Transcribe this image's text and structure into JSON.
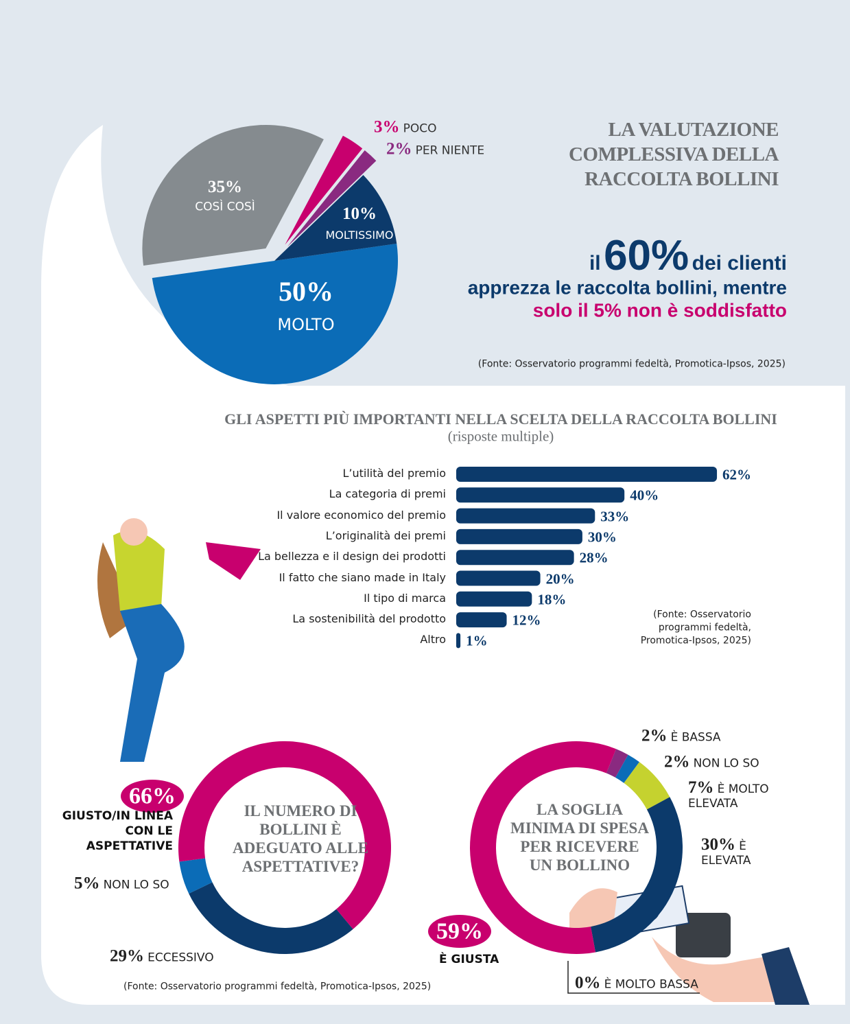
{
  "headline": {
    "line1": [
      "il",
      "60%",
      "dei clienti"
    ],
    "line2": "apprezza le raccolta bollini, mentre",
    "line3": "solo il 5% non è soddisfatto"
  },
  "chart_data": [
    {
      "type": "pie",
      "title": "LA VALUTAZIONE COMPLESSIVA DELLA RACCOLTA BOLLINI",
      "categories": [
        "MOLTO",
        "COSÌ COSÌ",
        "POCO",
        "PER NIENTE",
        "MOLTISSIMO"
      ],
      "values": [
        50,
        35,
        3,
        2,
        10
      ],
      "value_labels": [
        "50%",
        "35%",
        "3%",
        "2%",
        "10%"
      ],
      "colors": [
        "#0b6cb7",
        "#858b8f",
        "#c8006e",
        "#8a2a80",
        "#0c3a6b"
      ],
      "source": "(Fonte: Osservatorio programmi fedeltà, Promotica-Ipsos, 2025)"
    },
    {
      "type": "bar",
      "title": "GLI ASPETTI PIÙ IMPORTANTI NELLA SCELTA DELLA RACCOLTA BOLLINI",
      "subtitle": "(risposte multiple)",
      "categories": [
        "L’utilità del premio",
        "La categoria di premi",
        "Il valore economico del premio",
        "L’originalità dei premi",
        "La bellezza e il design dei prodotti",
        "Il fatto che siano made in Italy",
        "Il tipo di marca",
        "La sostenibilità del prodotto",
        "Altro"
      ],
      "values": [
        62,
        40,
        33,
        30,
        28,
        20,
        18,
        12,
        1
      ],
      "value_labels": [
        "62%",
        "40%",
        "33%",
        "30%",
        "28%",
        "20%",
        "18%",
        "12%",
        "1%"
      ],
      "color": "#0c3a6b",
      "source": "(Fonte: Osservatorio programmi fedeltà, Promotica-Ipsos, 2025)"
    },
    {
      "type": "donut",
      "title": "IL NUMERO DI BOLLINI È ADEGUATO ALLE ASPETTATIVE?",
      "categories": [
        "ECCESSIVO",
        "NON LO SO",
        "GIUSTO/IN LINEA CON LE ASPETTATIVE"
      ],
      "values": [
        29,
        5,
        66
      ],
      "value_labels": [
        "29%",
        "5%",
        "66%"
      ],
      "colors": [
        "#0c3a6b",
        "#0b6cb7",
        "#c8006e"
      ],
      "source": "(Fonte: Osservatorio programmi fedeltà, Promotica-Ipsos, 2025)"
    },
    {
      "type": "donut",
      "title": "LA SOGLIA MINIMA DI SPESA PER RICEVERE UN BOLLINO",
      "categories": [
        "È BASSA",
        "NON LO SO",
        "È MOLTO ELEVATA",
        "È ELEVATA",
        "È MOLTO BASSA",
        "È GIUSTA"
      ],
      "values": [
        2,
        2,
        7,
        30,
        0,
        59
      ],
      "value_labels": [
        "2%",
        "2%",
        "7%",
        "30%",
        "0%",
        "59%"
      ],
      "colors": [
        "#8a2a80",
        "#0b6cb7",
        "#c5d22f",
        "#0c3a6b",
        "#333333",
        "#c8006e"
      ]
    }
  ]
}
